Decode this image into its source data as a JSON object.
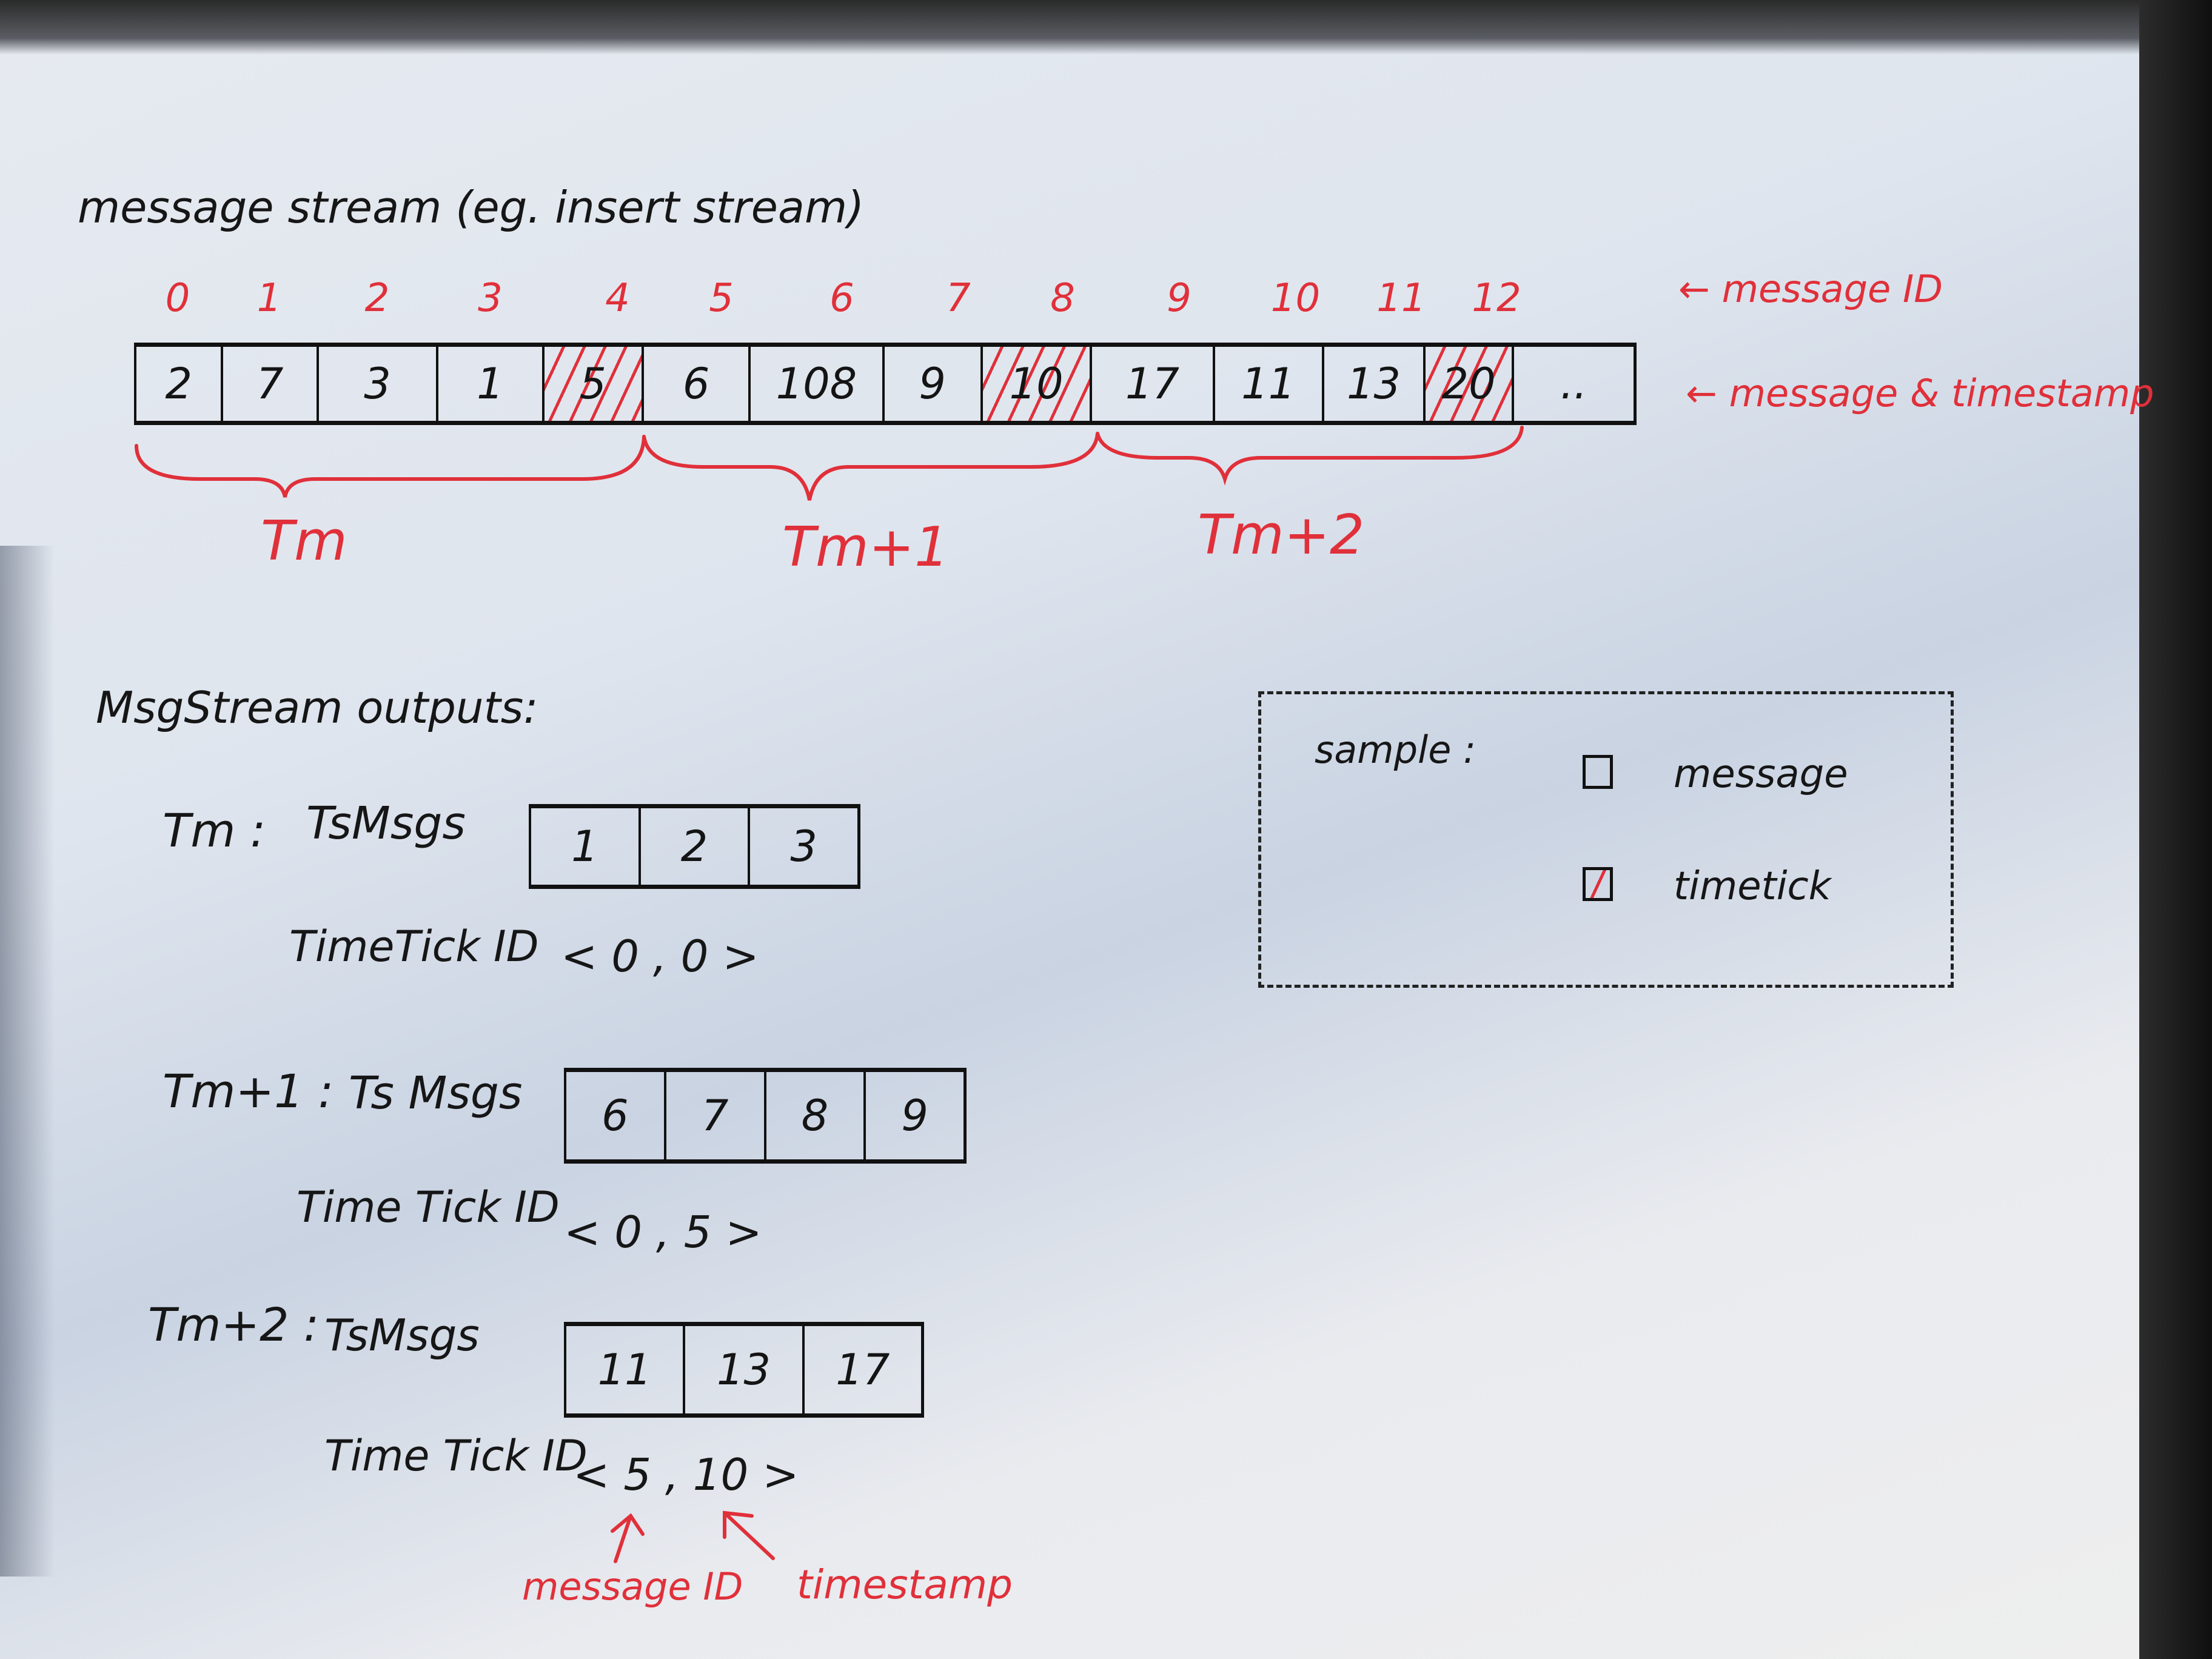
{
  "title": "message stream (eg. insert stream)",
  "stream": {
    "message_ids": [
      "0",
      "1",
      "2",
      "3",
      "4",
      "5",
      "6",
      "7",
      "8",
      "9",
      "10",
      "11",
      "12"
    ],
    "timestamps": [
      "2",
      "7",
      "3",
      "1",
      "5",
      "6",
      "108",
      "9",
      "10",
      "17",
      "11",
      "13",
      "20",
      ".."
    ],
    "timetick_flags": [
      false,
      false,
      false,
      false,
      true,
      false,
      false,
      false,
      true,
      false,
      false,
      false,
      true,
      false
    ],
    "label_message_id": "← message ID",
    "label_message_timestamp": "← message & timestamp"
  },
  "periods": [
    "Tm",
    "Tm+1",
    "Tm+2"
  ],
  "outputs": {
    "heading": "MsgStream outputs:",
    "groups": [
      {
        "period": "Tm :",
        "msgs_label": "TsMsgs",
        "msgs": [
          "1",
          "2",
          "3"
        ],
        "tick_label": "TimeTick ID",
        "tick_value": "< 0 , 0 >"
      },
      {
        "period": "Tm+1 :",
        "msgs_label": "Ts Msgs",
        "msgs": [
          "6",
          "7",
          "8",
          "9"
        ],
        "tick_label": "Time Tick ID",
        "tick_value": "< 0 , 5 >"
      },
      {
        "period": "Tm+2 :",
        "msgs_label": "TsMsgs",
        "msgs": [
          "11",
          "13",
          "17"
        ],
        "tick_label": "Time Tick ID",
        "tick_value": "< 5 , 10 >"
      }
    ],
    "annotation_message_id": "message ID",
    "annotation_timestamp": "timestamp"
  },
  "legend": {
    "title": "sample :",
    "items": [
      {
        "label": "message",
        "hatched": false
      },
      {
        "label": "timetick",
        "hatched": true
      }
    ]
  },
  "colors": {
    "ink": "#161616",
    "red_ink": "#e0303a",
    "paper": "#e3e8ef"
  }
}
